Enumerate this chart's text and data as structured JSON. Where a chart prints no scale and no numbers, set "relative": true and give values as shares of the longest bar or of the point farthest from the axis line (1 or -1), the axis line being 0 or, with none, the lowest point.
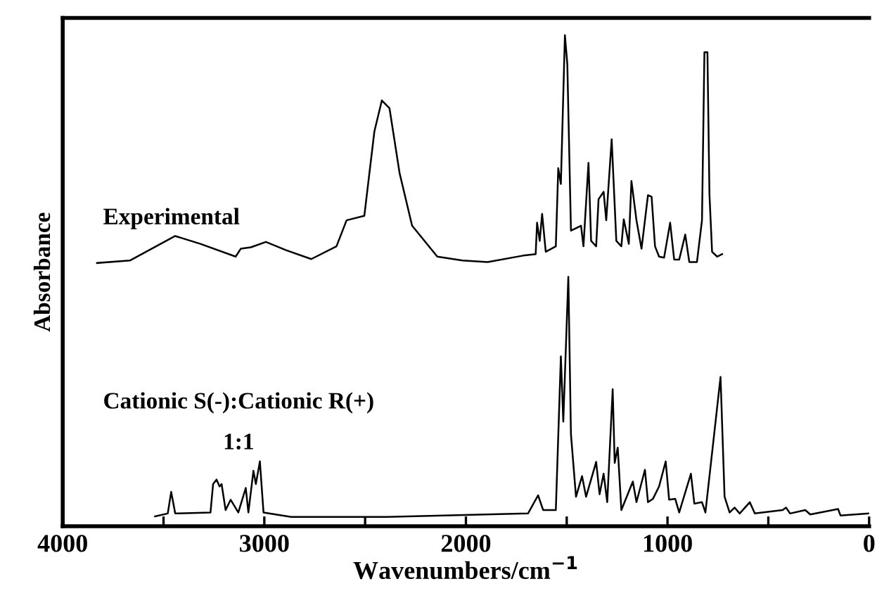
{
  "chart_data": {
    "type": "line",
    "relative": true,
    "xlabel": "Wavenumbers/cm$^{−1}$",
    "ylabel": "Absorbance",
    "xlim": [
      4000,
      0
    ],
    "xticks": [
      4000,
      {
        "value": 3500,
        "label": null
      },
      3000,
      {
        "value": 2500,
        "label": null
      },
      2000,
      {
        "value": 1500,
        "label": null
      },
      1000,
      {
        "value": 500,
        "label": null
      },
      0
    ],
    "grid": false,
    "legend": false,
    "marker": "none",
    "line_style": "solid",
    "series": [
      {
        "name": "Experimental",
        "color": "#000000",
        "x": [
          3830,
          3667,
          3442,
          3317,
          3142,
          3117,
          3067,
          2992,
          2892,
          2767,
          2642,
          2592,
          2504,
          2454,
          2417,
          2379,
          2329,
          2267,
          2142,
          2017,
          1892,
          1717,
          1654,
          1647,
          1634,
          1622,
          1604,
          1554,
          1542,
          1529,
          1509,
          1497,
          1479,
          1429,
          1417,
          1392,
          1379,
          1354,
          1342,
          1317,
          1304,
          1277,
          1254,
          1229,
          1217,
          1192,
          1179,
          1154,
          1129,
          1097,
          1079,
          1062,
          1042,
          1017,
          987,
          967,
          942,
          912,
          892,
          854,
          829,
          817,
          802,
          792,
          779,
          754,
          729
        ],
        "values": [
          0.536,
          0.541,
          0.591,
          0.575,
          0.549,
          0.565,
          0.568,
          0.579,
          0.562,
          0.544,
          0.57,
          0.623,
          0.632,
          0.804,
          0.867,
          0.851,
          0.719,
          0.612,
          0.549,
          0.541,
          0.538,
          0.551,
          0.554,
          0.618,
          0.581,
          0.636,
          0.559,
          0.57,
          0.729,
          0.697,
          1.0,
          0.941,
          0.602,
          0.612,
          0.57,
          0.74,
          0.581,
          0.57,
          0.666,
          0.681,
          0.623,
          0.788,
          0.581,
          0.57,
          0.625,
          0.575,
          0.703,
          0.623,
          0.565,
          0.674,
          0.671,
          0.57,
          0.549,
          0.547,
          0.618,
          0.543,
          0.543,
          0.594,
          0.538,
          0.538,
          0.623,
          0.965,
          0.965,
          0.676,
          0.559,
          0.549,
          0.554
        ]
      },
      {
        "name": "Cationic S(-):Cationic R(+)\n1:1",
        "color": "#000000",
        "x": [
          3542,
          3479,
          3462,
          3442,
          3267,
          3254,
          3237,
          3222,
          3212,
          3192,
          3167,
          3129,
          3092,
          3079,
          3054,
          3042,
          3022,
          3004,
          2867,
          2392,
          1692,
          1642,
          1617,
          1554,
          1529,
          1517,
          1492,
          1479,
          1454,
          1424,
          1404,
          1354,
          1337,
          1317,
          1299,
          1272,
          1262,
          1247,
          1229,
          1172,
          1154,
          1112,
          1097,
          1072,
          1042,
          1009,
          992,
          962,
          942,
          884,
          867,
          829,
          812,
          737,
          717,
          692,
          667,
          642,
          592,
          567,
          429,
          412,
          392,
          317,
          292,
          154,
          142,
          0
        ],
        "values": [
          0.02,
          0.026,
          0.07,
          0.026,
          0.028,
          0.086,
          0.095,
          0.081,
          0.086,
          0.033,
          0.054,
          0.028,
          0.078,
          0.028,
          0.113,
          0.086,
          0.132,
          0.028,
          0.019,
          0.019,
          0.026,
          0.063,
          0.033,
          0.033,
          0.346,
          0.213,
          0.508,
          0.187,
          0.06,
          0.102,
          0.06,
          0.131,
          0.065,
          0.107,
          0.049,
          0.279,
          0.129,
          0.16,
          0.033,
          0.091,
          0.049,
          0.115,
          0.049,
          0.056,
          0.081,
          0.132,
          0.054,
          0.056,
          0.028,
          0.107,
          0.046,
          0.049,
          0.028,
          0.304,
          0.06,
          0.028,
          0.038,
          0.026,
          0.049,
          0.026,
          0.033,
          0.038,
          0.026,
          0.033,
          0.024,
          0.035,
          0.022,
          0.026
        ]
      }
    ]
  }
}
